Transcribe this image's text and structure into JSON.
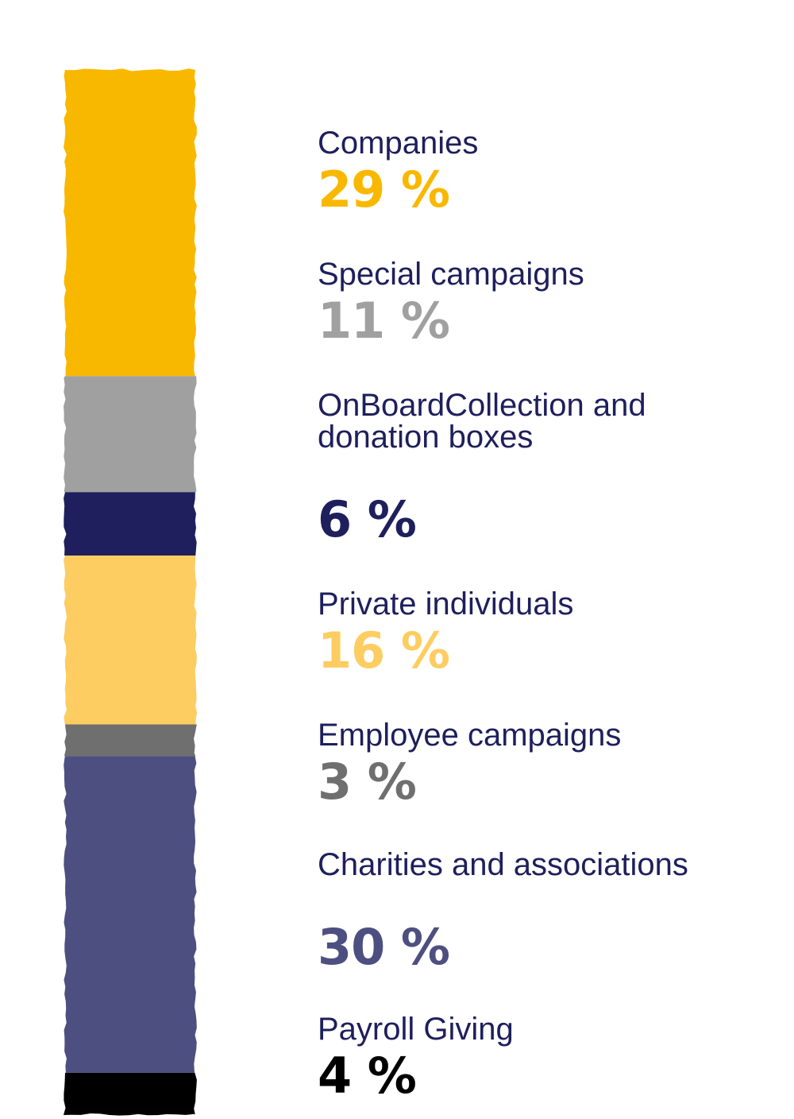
{
  "chart_data": {
    "type": "bar",
    "orientation": "vertical-stacked",
    "unit": "%",
    "series": [
      {
        "name": "Companies",
        "value": 29,
        "label": "29 %",
        "color": "#f9b800"
      },
      {
        "name": "Special campaigns",
        "value": 11,
        "label": "11 %",
        "color": "#a0a0a0"
      },
      {
        "name": "OnBoardCollection and donation boxes",
        "value": 6,
        "label": "6 %",
        "color": "#1e1f5c"
      },
      {
        "name": "Private individuals",
        "value": 16,
        "label": "16 %",
        "color": "#fdcd62"
      },
      {
        "name": "Employee campaigns",
        "value": 3,
        "label": "3 %",
        "color": "#6f6f6f"
      },
      {
        "name": "Charities and associations",
        "value": 30,
        "label": "30 %",
        "color": "#4d4f80"
      },
      {
        "name": "Payroll Giving",
        "value": 4,
        "label": "4 %",
        "color": "#000000"
      }
    ]
  },
  "legend": {
    "label_color": "#1e1f5c"
  }
}
